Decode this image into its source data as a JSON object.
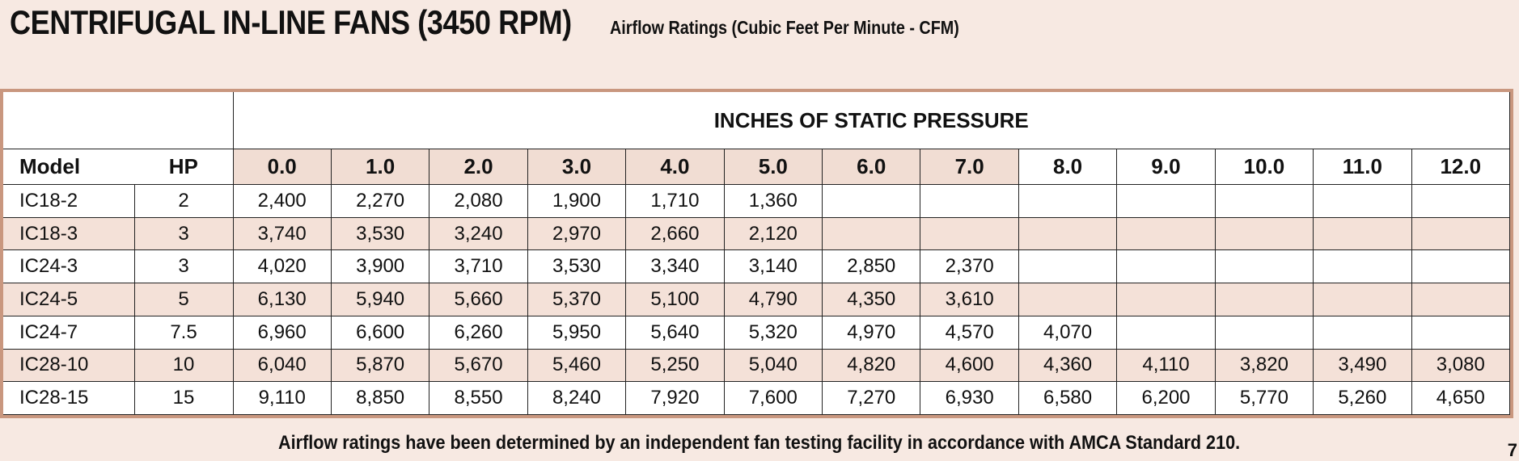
{
  "title": "CENTRIFUGAL IN-LINE FANS (3450 RPM)",
  "subtitle": "Airflow Ratings (Cubic Feet Per Minute - CFM)",
  "table": {
    "pressure_header": "INCHES OF STATIC PRESSURE",
    "model_header": "Model",
    "hp_header": "HP",
    "pressures": [
      "0.0",
      "1.0",
      "2.0",
      "3.0",
      "4.0",
      "5.0",
      "6.0",
      "7.0",
      "8.0",
      "9.0",
      "10.0",
      "11.0",
      "12.0"
    ],
    "rows": [
      {
        "model": "IC18-2",
        "hp": "2",
        "values": [
          "2,400",
          "2,270",
          "2,080",
          "1,900",
          "1,710",
          "1,360",
          "",
          "",
          "",
          "",
          "",
          "",
          ""
        ]
      },
      {
        "model": "IC18-3",
        "hp": "3",
        "values": [
          "3,740",
          "3,530",
          "3,240",
          "2,970",
          "2,660",
          "2,120",
          "",
          "",
          "",
          "",
          "",
          "",
          ""
        ]
      },
      {
        "model": "IC24-3",
        "hp": "3",
        "values": [
          "4,020",
          "3,900",
          "3,710",
          "3,530",
          "3,340",
          "3,140",
          "2,850",
          "2,370",
          "",
          "",
          "",
          "",
          ""
        ]
      },
      {
        "model": "IC24-5",
        "hp": "5",
        "values": [
          "6,130",
          "5,940",
          "5,660",
          "5,370",
          "5,100",
          "4,790",
          "4,350",
          "3,610",
          "",
          "",
          "",
          "",
          ""
        ]
      },
      {
        "model": "IC24-7",
        "hp": "7.5",
        "values": [
          "6,960",
          "6,600",
          "6,260",
          "5,950",
          "5,640",
          "5,320",
          "4,970",
          "4,570",
          "4,070",
          "",
          "",
          "",
          ""
        ]
      },
      {
        "model": "IC28-10",
        "hp": "10",
        "values": [
          "6,040",
          "5,870",
          "5,670",
          "5,460",
          "5,250",
          "5,040",
          "4,820",
          "4,600",
          "4,360",
          "4,110",
          "3,820",
          "3,490",
          "3,080"
        ]
      },
      {
        "model": "IC28-15",
        "hp": "15",
        "values": [
          "9,110",
          "8,850",
          "8,550",
          "8,240",
          "7,920",
          "7,600",
          "7,270",
          "6,930",
          "6,580",
          "6,200",
          "5,770",
          "5,260",
          "4,650"
        ]
      }
    ]
  },
  "footer": "Airflow ratings have been determined by an independent fan testing facility in accordance with AMCA Standard 210.",
  "page_number": "7",
  "colors": {
    "background": "#f7e9e2",
    "border": "#c9977f",
    "shade": "#f4e1d8"
  }
}
